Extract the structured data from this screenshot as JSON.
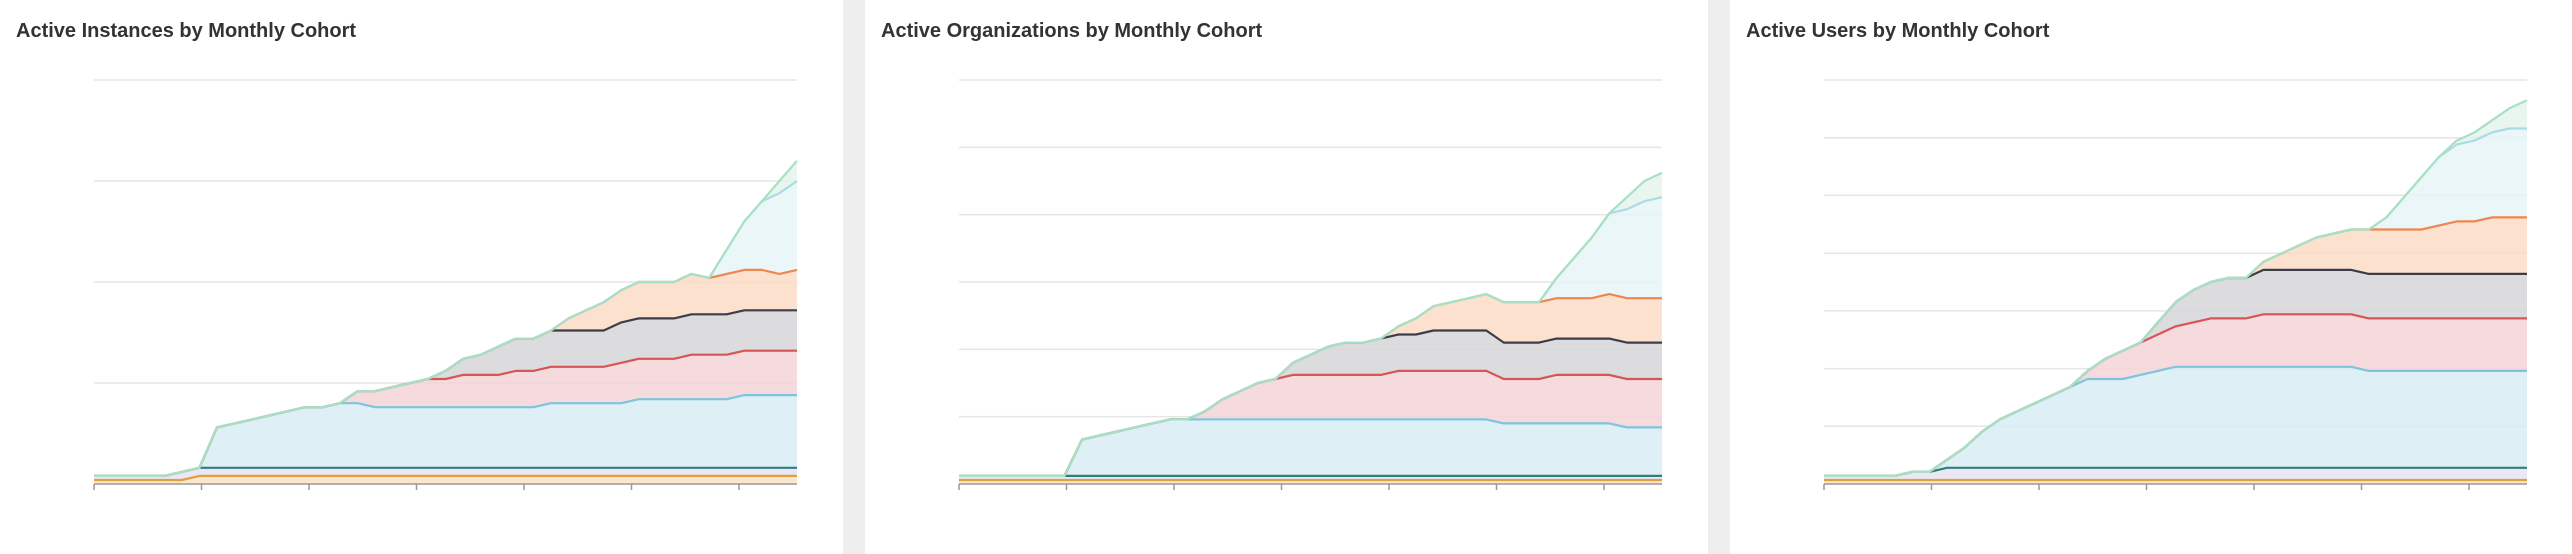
{
  "dashboard": {
    "panels": [
      {
        "title": "Active Instances by Monthly Cohort"
      },
      {
        "title": "Active Organizations by Monthly Cohort"
      },
      {
        "title": "Active Users by Monthly Cohort"
      }
    ]
  },
  "colors": {
    "page_background": "#eeeeee",
    "panel_background": "#ffffff",
    "gridline": "#e5e5e5",
    "axis": "#999999",
    "title_text": "#333333"
  },
  "series_colors": [
    {
      "line": "#e0a040",
      "fill": "#fbe3c5"
    },
    {
      "line": "#2f7f7f",
      "fill": "#e9e3f2"
    },
    {
      "line": "#7fc4dc",
      "fill": "#d8ecf4"
    },
    {
      "line": "#d65555",
      "fill": "#f5d5d8"
    },
    {
      "line": "#3d3d4a",
      "fill": "#d6d6d9"
    },
    {
      "line": "#ee8650",
      "fill": "#fbdcc6"
    },
    {
      "line": "#a8dde2",
      "fill": "#e8f4f7"
    },
    {
      "line": "#a8e0c4",
      "fill": "#e4f5ec"
    }
  ],
  "chart_data": [
    {
      "type": "area",
      "title": "Active Instances by Monthly Cohort",
      "stacked": true,
      "grid": true,
      "y_gridlines": 4,
      "x_ticks": 7,
      "x": [
        0,
        1,
        2,
        3,
        4,
        5,
        6,
        7,
        8,
        9,
        10,
        11,
        12,
        13,
        14,
        15,
        16,
        17,
        18,
        19,
        20,
        21,
        22,
        23,
        24,
        25,
        26,
        27,
        28,
        29,
        30,
        31,
        32,
        33,
        34,
        35,
        36,
        37,
        38,
        39,
        40
      ],
      "ylim": [
        0,
        100
      ],
      "series": [
        {
          "values": [
            1,
            1,
            1,
            1,
            1,
            1,
            2,
            2,
            2,
            2,
            2,
            2,
            2,
            2,
            2,
            2,
            2,
            2,
            2,
            2,
            2,
            2,
            2,
            2,
            2,
            2,
            2,
            2,
            2,
            2,
            2,
            2,
            2,
            2,
            2,
            2,
            2,
            2,
            2,
            2,
            2
          ]
        },
        {
          "values": [
            1,
            1,
            1,
            1,
            1,
            2,
            2,
            2,
            2,
            2,
            2,
            2,
            2,
            2,
            2,
            2,
            2,
            2,
            2,
            2,
            2,
            2,
            2,
            2,
            2,
            2,
            2,
            2,
            2,
            2,
            2,
            2,
            2,
            2,
            2,
            2,
            2,
            2,
            2,
            2,
            2
          ]
        },
        {
          "values": [
            0,
            0,
            0,
            0,
            0,
            0,
            0,
            10,
            11,
            12,
            13,
            14,
            15,
            15,
            16,
            16,
            15,
            15,
            15,
            15,
            15,
            15,
            15,
            15,
            15,
            15,
            16,
            16,
            16,
            16,
            16,
            17,
            17,
            17,
            17,
            17,
            17,
            18,
            18,
            18,
            18
          ]
        },
        {
          "values": [
            0,
            0,
            0,
            0,
            0,
            0,
            0,
            0,
            0,
            0,
            0,
            0,
            0,
            0,
            0,
            3,
            4,
            5,
            6,
            7,
            7,
            8,
            8,
            8,
            9,
            9,
            9,
            9,
            9,
            9,
            10,
            10,
            10,
            10,
            11,
            11,
            11,
            11,
            11,
            11,
            11
          ]
        },
        {
          "values": [
            0,
            0,
            0,
            0,
            0,
            0,
            0,
            0,
            0,
            0,
            0,
            0,
            0,
            0,
            0,
            0,
            0,
            0,
            0,
            0,
            2,
            4,
            5,
            7,
            8,
            8,
            9,
            9,
            9,
            9,
            10,
            10,
            10,
            10,
            10,
            10,
            10,
            10,
            10,
            10,
            10
          ]
        },
        {
          "values": [
            0,
            0,
            0,
            0,
            0,
            0,
            0,
            0,
            0,
            0,
            0,
            0,
            0,
            0,
            0,
            0,
            0,
            0,
            0,
            0,
            0,
            0,
            0,
            0,
            0,
            0,
            0,
            3,
            5,
            7,
            8,
            9,
            9,
            9,
            10,
            9,
            10,
            10,
            10,
            9,
            10
          ]
        },
        {
          "values": [
            0,
            0,
            0,
            0,
            0,
            0,
            0,
            0,
            0,
            0,
            0,
            0,
            0,
            0,
            0,
            0,
            0,
            0,
            0,
            0,
            0,
            0,
            0,
            0,
            0,
            0,
            0,
            0,
            0,
            0,
            0,
            0,
            0,
            0,
            0,
            0,
            6,
            12,
            17,
            20,
            22
          ]
        },
        {
          "values": [
            0,
            0,
            0,
            0,
            0,
            0,
            0,
            0,
            0,
            0,
            0,
            0,
            0,
            0,
            0,
            0,
            0,
            0,
            0,
            0,
            0,
            0,
            0,
            0,
            0,
            0,
            0,
            0,
            0,
            0,
            0,
            0,
            0,
            0,
            0,
            0,
            0,
            0,
            0,
            3,
            5
          ]
        }
      ]
    },
    {
      "type": "area",
      "title": "Active Organizations by Monthly Cohort",
      "stacked": true,
      "grid": true,
      "y_gridlines": 6,
      "x_ticks": 7,
      "x": [
        0,
        1,
        2,
        3,
        4,
        5,
        6,
        7,
        8,
        9,
        10,
        11,
        12,
        13,
        14,
        15,
        16,
        17,
        18,
        19,
        20,
        21,
        22,
        23,
        24,
        25,
        26,
        27,
        28,
        29,
        30,
        31,
        32,
        33,
        34,
        35,
        36,
        37,
        38,
        39,
        40
      ],
      "ylim": [
        0,
        100
      ],
      "series": [
        {
          "values": [
            1,
            1,
            1,
            1,
            1,
            1,
            1,
            1,
            1,
            1,
            1,
            1,
            1,
            1,
            1,
            1,
            1,
            1,
            1,
            1,
            1,
            1,
            1,
            1,
            1,
            1,
            1,
            1,
            1,
            1,
            1,
            1,
            1,
            1,
            1,
            1,
            1,
            1,
            1,
            1,
            1
          ]
        },
        {
          "values": [
            1,
            1,
            1,
            1,
            1,
            1,
            1,
            1,
            1,
            1,
            1,
            1,
            1,
            1,
            1,
            1,
            1,
            1,
            1,
            1,
            1,
            1,
            1,
            1,
            1,
            1,
            1,
            1,
            1,
            1,
            1,
            1,
            1,
            1,
            1,
            1,
            1,
            1,
            1,
            1,
            1
          ]
        },
        {
          "values": [
            0,
            0,
            0,
            0,
            0,
            0,
            0,
            9,
            10,
            11,
            12,
            13,
            14,
            14,
            14,
            14,
            14,
            14,
            14,
            14,
            14,
            14,
            14,
            14,
            14,
            14,
            14,
            14,
            14,
            14,
            14,
            13,
            13,
            13,
            13,
            13,
            13,
            13,
            12,
            12,
            12
          ]
        },
        {
          "values": [
            0,
            0,
            0,
            0,
            0,
            0,
            0,
            0,
            0,
            0,
            0,
            0,
            0,
            0,
            2,
            5,
            7,
            9,
            10,
            11,
            11,
            11,
            11,
            11,
            11,
            12,
            12,
            12,
            12,
            12,
            12,
            11,
            11,
            11,
            12,
            12,
            12,
            12,
            12,
            12,
            12
          ]
        },
        {
          "values": [
            0,
            0,
            0,
            0,
            0,
            0,
            0,
            0,
            0,
            0,
            0,
            0,
            0,
            0,
            0,
            0,
            0,
            0,
            0,
            3,
            5,
            7,
            8,
            8,
            9,
            9,
            9,
            10,
            10,
            10,
            10,
            9,
            9,
            9,
            9,
            9,
            9,
            9,
            9,
            9,
            9
          ]
        },
        {
          "values": [
            0,
            0,
            0,
            0,
            0,
            0,
            0,
            0,
            0,
            0,
            0,
            0,
            0,
            0,
            0,
            0,
            0,
            0,
            0,
            0,
            0,
            0,
            0,
            0,
            0,
            2,
            4,
            6,
            7,
            8,
            9,
            10,
            10,
            10,
            10,
            10,
            10,
            11,
            11,
            11,
            11
          ]
        },
        {
          "values": [
            0,
            0,
            0,
            0,
            0,
            0,
            0,
            0,
            0,
            0,
            0,
            0,
            0,
            0,
            0,
            0,
            0,
            0,
            0,
            0,
            0,
            0,
            0,
            0,
            0,
            0,
            0,
            0,
            0,
            0,
            0,
            0,
            0,
            0,
            5,
            10,
            15,
            20,
            22,
            24,
            25
          ]
        },
        {
          "values": [
            0,
            0,
            0,
            0,
            0,
            0,
            0,
            0,
            0,
            0,
            0,
            0,
            0,
            0,
            0,
            0,
            0,
            0,
            0,
            0,
            0,
            0,
            0,
            0,
            0,
            0,
            0,
            0,
            0,
            0,
            0,
            0,
            0,
            0,
            0,
            0,
            0,
            0,
            3,
            5,
            6
          ]
        }
      ]
    },
    {
      "type": "area",
      "title": "Active Users by Monthly Cohort",
      "stacked": true,
      "grid": true,
      "y_gridlines": 7,
      "x_ticks": 7,
      "x": [
        0,
        1,
        2,
        3,
        4,
        5,
        6,
        7,
        8,
        9,
        10,
        11,
        12,
        13,
        14,
        15,
        16,
        17,
        18,
        19,
        20,
        21,
        22,
        23,
        24,
        25,
        26,
        27,
        28,
        29,
        30,
        31,
        32,
        33,
        34,
        35,
        36,
        37,
        38,
        39,
        40
      ],
      "ylim": [
        0,
        100
      ],
      "series": [
        {
          "values": [
            1,
            1,
            1,
            1,
            1,
            1,
            1,
            1,
            1,
            1,
            1,
            1,
            1,
            1,
            1,
            1,
            1,
            1,
            1,
            1,
            1,
            1,
            1,
            1,
            1,
            1,
            1,
            1,
            1,
            1,
            1,
            1,
            1,
            1,
            1,
            1,
            1,
            1,
            1,
            1,
            1
          ]
        },
        {
          "values": [
            1,
            1,
            1,
            1,
            1,
            2,
            2,
            3,
            3,
            3,
            3,
            3,
            3,
            3,
            3,
            3,
            3,
            3,
            3,
            3,
            3,
            3,
            3,
            3,
            3,
            3,
            3,
            3,
            3,
            3,
            3,
            3,
            3,
            3,
            3,
            3,
            3,
            3,
            3,
            3,
            3
          ]
        },
        {
          "values": [
            0,
            0,
            0,
            0,
            0,
            0,
            0,
            2,
            5,
            9,
            12,
            14,
            16,
            18,
            20,
            22,
            22,
            22,
            23,
            24,
            25,
            25,
            25,
            25,
            25,
            25,
            25,
            25,
            25,
            25,
            25,
            24,
            24,
            24,
            24,
            24,
            24,
            24,
            24,
            24,
            24
          ]
        },
        {
          "values": [
            0,
            0,
            0,
            0,
            0,
            0,
            0,
            0,
            0,
            0,
            0,
            0,
            0,
            0,
            0,
            2,
            5,
            7,
            8,
            9,
            10,
            11,
            12,
            12,
            12,
            13,
            13,
            13,
            13,
            13,
            13,
            13,
            13,
            13,
            13,
            13,
            13,
            13,
            13,
            13,
            13
          ]
        },
        {
          "values": [
            0,
            0,
            0,
            0,
            0,
            0,
            0,
            0,
            0,
            0,
            0,
            0,
            0,
            0,
            0,
            0,
            0,
            0,
            0,
            3,
            6,
            8,
            9,
            10,
            10,
            11,
            11,
            11,
            11,
            11,
            11,
            11,
            11,
            11,
            11,
            11,
            11,
            11,
            11,
            11,
            11
          ]
        },
        {
          "values": [
            0,
            0,
            0,
            0,
            0,
            0,
            0,
            0,
            0,
            0,
            0,
            0,
            0,
            0,
            0,
            0,
            0,
            0,
            0,
            0,
            0,
            0,
            0,
            0,
            0,
            2,
            4,
            6,
            8,
            9,
            10,
            11,
            11,
            11,
            11,
            12,
            13,
            13,
            14,
            14,
            14
          ]
        },
        {
          "values": [
            0,
            0,
            0,
            0,
            0,
            0,
            0,
            0,
            0,
            0,
            0,
            0,
            0,
            0,
            0,
            0,
            0,
            0,
            0,
            0,
            0,
            0,
            0,
            0,
            0,
            0,
            0,
            0,
            0,
            0,
            0,
            0,
            3,
            8,
            13,
            17,
            19,
            20,
            21,
            22,
            22
          ]
        },
        {
          "values": [
            0,
            0,
            0,
            0,
            0,
            0,
            0,
            0,
            0,
            0,
            0,
            0,
            0,
            0,
            0,
            0,
            0,
            0,
            0,
            0,
            0,
            0,
            0,
            0,
            0,
            0,
            0,
            0,
            0,
            0,
            0,
            0,
            0,
            0,
            0,
            0,
            1,
            2,
            3,
            5,
            7
          ]
        }
      ]
    }
  ]
}
